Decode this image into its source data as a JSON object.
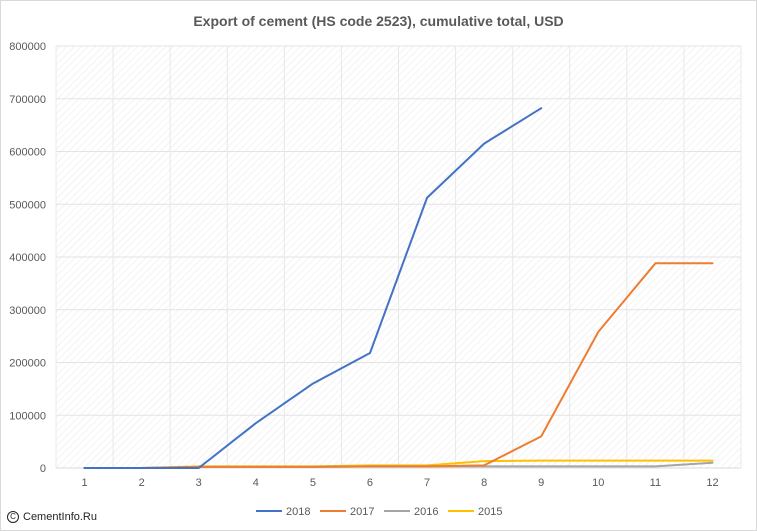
{
  "title": "Export of cement (HS code 2523), cumulative total, USD",
  "watermark": "CementInfo.Ru",
  "chart_data": {
    "type": "line",
    "title": "Export of cement (HS code 2523), cumulative total, USD",
    "x": [
      1,
      2,
      3,
      4,
      5,
      6,
      7,
      8,
      9,
      10,
      11,
      12
    ],
    "ylim": [
      0,
      800000
    ],
    "yticks": [
      0,
      100000,
      200000,
      300000,
      400000,
      500000,
      600000,
      700000,
      800000
    ],
    "grid": true,
    "legend": "bottom",
    "series": [
      {
        "name": "2018",
        "color": "#4472c4",
        "values": [
          0,
          0,
          0,
          85000,
          160000,
          218000,
          512000,
          615000,
          682000,
          null,
          null,
          null
        ]
      },
      {
        "name": "2017",
        "color": "#ed7d31",
        "values": [
          0,
          0,
          2000,
          2000,
          2000,
          3000,
          3000,
          5000,
          60000,
          258000,
          388000,
          388000
        ]
      },
      {
        "name": "2016",
        "color": "#a5a5a5",
        "values": [
          0,
          0,
          2000,
          2000,
          2000,
          3000,
          3000,
          3000,
          3000,
          3000,
          3000,
          10000
        ]
      },
      {
        "name": "2015",
        "color": "#ffc000",
        "values": [
          0,
          0,
          3000,
          3000,
          3000,
          5000,
          5000,
          13000,
          14000,
          14000,
          14000,
          14000
        ]
      }
    ]
  }
}
